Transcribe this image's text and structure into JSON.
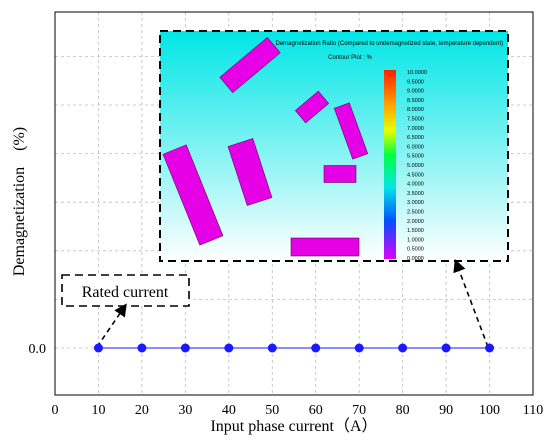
{
  "chart_data": {
    "type": "line",
    "xlabel": "Input phase current（A）",
    "ylabel": "Demagnetization　(%)",
    "xlim": [
      0,
      110
    ],
    "x_ticks": [
      "0",
      "10",
      "20",
      "30",
      "40",
      "50",
      "60",
      "70",
      "80",
      "90",
      "100",
      "110"
    ],
    "y_ticks": [
      "0.0"
    ],
    "grid": true,
    "series": [
      {
        "x": [
          10,
          20,
          30,
          40,
          50,
          60,
          70,
          80,
          90,
          100
        ],
        "y": [
          0,
          0,
          0,
          0,
          0,
          0,
          0,
          0,
          0,
          0
        ],
        "color": "#1a1aff",
        "marker": "circle"
      }
    ],
    "annotations": {
      "callout": "Rated current",
      "inset": {
        "title": "Demagnetization Ratio (Compared to undemagnetized state, temperature dependent)",
        "subtitle": "Contour Plot : %",
        "scale_labels": [
          "10.0000",
          "9.5000",
          "9.0000",
          "8.5000",
          "8.0000",
          "7.5000",
          "7.0000",
          "6.5000",
          "6.0000",
          "5.5000",
          "5.0000",
          "4.5000",
          "4.0000",
          "3.5000",
          "3.0000",
          "2.5000",
          "2.0000",
          "1.5000",
          "1.0000",
          "0.5000",
          "0.0000"
        ],
        "background_colors": [
          "#00e6e6",
          "#ffffff"
        ],
        "magnet_color": "#e600e6"
      }
    }
  }
}
